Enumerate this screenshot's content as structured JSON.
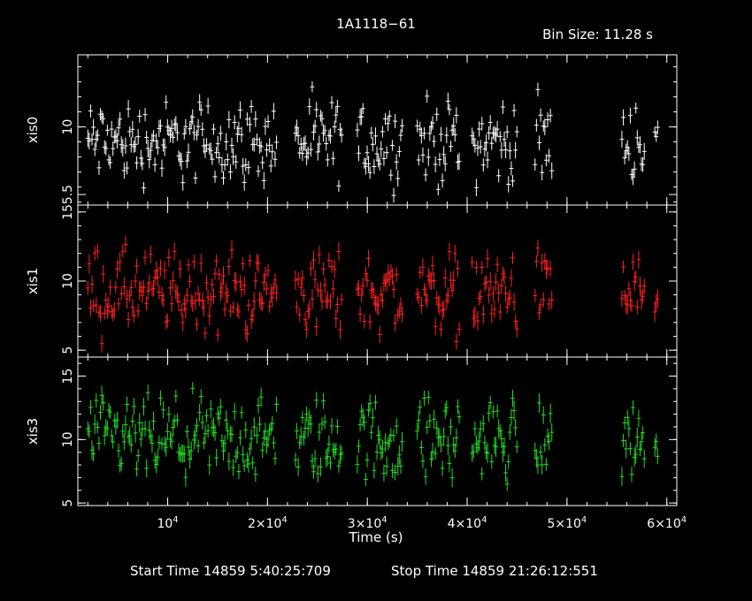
{
  "header": {
    "title": "1A1118−61",
    "bin_size": "Bin Size: 11.28 s"
  },
  "footer": {
    "start_time": "Start Time 14859  5:40:25:709",
    "stop_time": "Stop Time 14859 21:26:12:551"
  },
  "chart_data": {
    "type": "scatter",
    "xlabel": "Time (s)",
    "xlim": [
      1000,
      61000
    ],
    "x_ticks": [
      {
        "value": 10000,
        "base": "10",
        "exp": "4"
      },
      {
        "value": 20000,
        "base": "2×10",
        "exp": "4"
      },
      {
        "value": 30000,
        "base": "3×10",
        "exp": "4"
      },
      {
        "value": 40000,
        "base": "4×10",
        "exp": "4"
      },
      {
        "value": 50000,
        "base": "5×10",
        "exp": "4"
      },
      {
        "value": 60000,
        "base": "6×10",
        "exp": "4"
      }
    ],
    "panels": [
      {
        "name": "xis0",
        "color": "#ffffff",
        "ylim": [
          4.8,
          14.8
        ],
        "y_ticks": [
          {
            "value": 5.5,
            "label": "5.5"
          },
          {
            "value": 10,
            "label": "10"
          }
        ],
        "center": 9.0,
        "spread": 1.9,
        "err": 0.45
      },
      {
        "name": "xis1",
        "color": "#ff2020",
        "ylim": [
          4.5,
          15.5
        ],
        "y_ticks": [
          {
            "value": 5,
            "label": "5"
          },
          {
            "value": 10,
            "label": "10"
          },
          {
            "value": 15,
            "label": "15"
          }
        ],
        "center": 9.2,
        "spread": 2.1,
        "err": 0.55
      },
      {
        "name": "xis3",
        "color": "#22dd22",
        "ylim": [
          4.8,
          16.5
        ],
        "y_ticks": [
          {
            "value": 5,
            "label": "5"
          },
          {
            "value": 10,
            "label": "10"
          },
          {
            "value": 15,
            "label": "15"
          }
        ],
        "center": 10.0,
        "spread": 2.3,
        "err": 0.6
      }
    ],
    "segments": [
      [
        2000,
        21000
      ],
      [
        22800,
        27500
      ],
      [
        29000,
        33500
      ],
      [
        35000,
        39200
      ],
      [
        40500,
        45000
      ],
      [
        46800,
        48500
      ],
      [
        55500,
        57800
      ],
      [
        58800,
        59200
      ]
    ],
    "bin_step": 140
  }
}
